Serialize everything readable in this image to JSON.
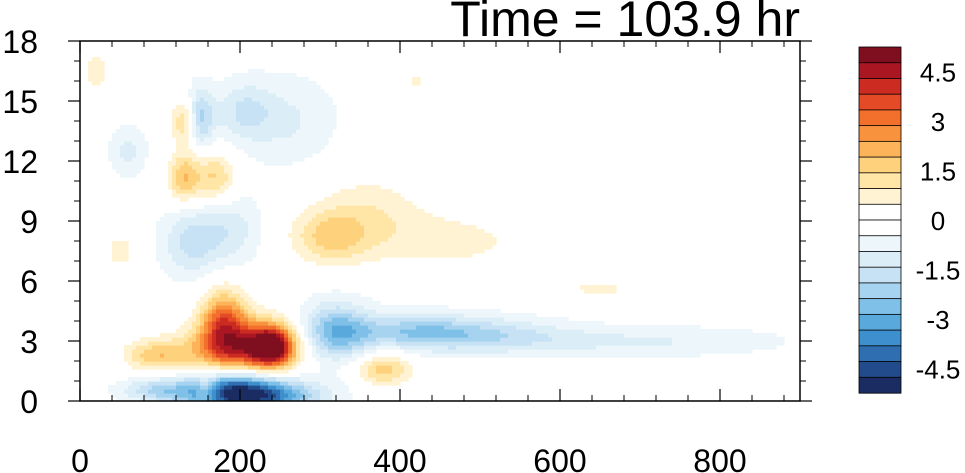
{
  "chart_data": {
    "type": "heatmap",
    "title": "Time = 103.9 hr",
    "xlabel": "",
    "ylabel": "",
    "xlim": [
      0,
      900
    ],
    "ylim": [
      0,
      18
    ],
    "x_ticks": [
      "0",
      "200",
      "400",
      "600",
      "800"
    ],
    "x_tick_values": [
      0,
      200,
      400,
      600,
      800
    ],
    "y_ticks": [
      "0",
      "3",
      "6",
      "9",
      "12",
      "15",
      "18"
    ],
    "y_tick_values": [
      0,
      3,
      6,
      9,
      12,
      15,
      18
    ],
    "colorbar": {
      "levels": [
        -5.25,
        -4.75,
        -4.25,
        -3.75,
        -3.25,
        -2.75,
        -2.25,
        -1.75,
        -1.25,
        -0.75,
        -0.25,
        0.25,
        0.75,
        1.25,
        1.75,
        2.25,
        2.75,
        3.25,
        3.75,
        4.25,
        4.75,
        5.25
      ],
      "colors": [
        "#1b2c62",
        "#224b8b",
        "#2f6fb1",
        "#3e8fce",
        "#5aa9dd",
        "#7ec0e8",
        "#a6d3ef",
        "#c6e2f4",
        "#dbeef8",
        "#edf6fb",
        "#ffffff",
        "#ffffff",
        "#fff3d3",
        "#ffe5a6",
        "#fed17c",
        "#fdb35a",
        "#f9923d",
        "#f26f2c",
        "#e34a25",
        "#cc2b21",
        "#ab1623",
        "#7f0f1e"
      ],
      "tick_labels": [
        "4.5",
        "3",
        "1.5",
        "0",
        "-1.5",
        "-3",
        "-4.5"
      ],
      "tick_values": [
        4.5,
        3,
        1.5,
        0,
        -1.5,
        -3,
        -4.5
      ]
    },
    "features": [
      {
        "x": 200,
        "y": 2.4,
        "value": 4.0,
        "sx": 45,
        "sy": 1.2
      },
      {
        "x": 240,
        "y": 2.8,
        "value": 4.8,
        "sx": 20,
        "sy": 0.7
      },
      {
        "x": 180,
        "y": 4.0,
        "value": 3.0,
        "sx": 20,
        "sy": 1.2
      },
      {
        "x": 210,
        "y": 0.3,
        "value": -5.0,
        "sx": 55,
        "sy": 0.6
      },
      {
        "x": 190,
        "y": 1.1,
        "value": -3.0,
        "sx": 40,
        "sy": 0.7
      },
      {
        "x": 320,
        "y": 3.5,
        "value": -2.5,
        "sx": 30,
        "sy": 1.0
      },
      {
        "x": 420,
        "y": 3.5,
        "value": -2.0,
        "sx": 60,
        "sy": 0.6
      },
      {
        "x": 520,
        "y": 3.3,
        "value": -1.2,
        "sx": 70,
        "sy": 0.6
      },
      {
        "x": 700,
        "y": 3.0,
        "value": -0.8,
        "sx": 120,
        "sy": 0.5
      },
      {
        "x": 380,
        "y": 1.6,
        "value": 2.0,
        "sx": 25,
        "sy": 0.6
      },
      {
        "x": 95,
        "y": 2.3,
        "value": 2.0,
        "sx": 30,
        "sy": 0.6
      },
      {
        "x": 95,
        "y": 0.6,
        "value": -1.5,
        "sx": 30,
        "sy": 0.4
      },
      {
        "x": 130,
        "y": 11.2,
        "value": 2.2,
        "sx": 15,
        "sy": 0.9
      },
      {
        "x": 170,
        "y": 11.2,
        "value": 1.8,
        "sx": 18,
        "sy": 0.9
      },
      {
        "x": 130,
        "y": 14.0,
        "value": 1.8,
        "sx": 12,
        "sy": 0.8
      },
      {
        "x": 150,
        "y": 14.2,
        "value": -2.0,
        "sx": 12,
        "sy": 1.0
      },
      {
        "x": 205,
        "y": 14.5,
        "value": -1.2,
        "sx": 25,
        "sy": 1.0
      },
      {
        "x": 140,
        "y": 8.0,
        "value": -1.5,
        "sx": 25,
        "sy": 1.2
      },
      {
        "x": 190,
        "y": 8.6,
        "value": -1.0,
        "sx": 25,
        "sy": 1.2
      },
      {
        "x": 310,
        "y": 8.2,
        "value": 1.6,
        "sx": 35,
        "sy": 1.0
      },
      {
        "x": 360,
        "y": 9.5,
        "value": 1.0,
        "sx": 50,
        "sy": 1.5
      },
      {
        "x": 470,
        "y": 8.0,
        "value": 0.9,
        "sx": 80,
        "sy": 1.2
      },
      {
        "x": 650,
        "y": 5.6,
        "value": 0.8,
        "sx": 60,
        "sy": 0.6
      },
      {
        "x": 260,
        "y": 14.0,
        "value": -0.8,
        "sx": 40,
        "sy": 1.5
      },
      {
        "x": 20,
        "y": 16.5,
        "value": 1.0,
        "sx": 12,
        "sy": 1.0
      },
      {
        "x": 50,
        "y": 7.5,
        "value": 1.2,
        "sx": 12,
        "sy": 0.6
      },
      {
        "x": 60,
        "y": 12.5,
        "value": -0.9,
        "sx": 15,
        "sy": 0.8
      },
      {
        "x": 420,
        "y": 16.0,
        "value": 0.8,
        "sx": 15,
        "sy": 0.8
      },
      {
        "x": 160,
        "y": 0.6,
        "value": 1.5,
        "sx": 10,
        "sy": 0.5
      }
    ]
  }
}
